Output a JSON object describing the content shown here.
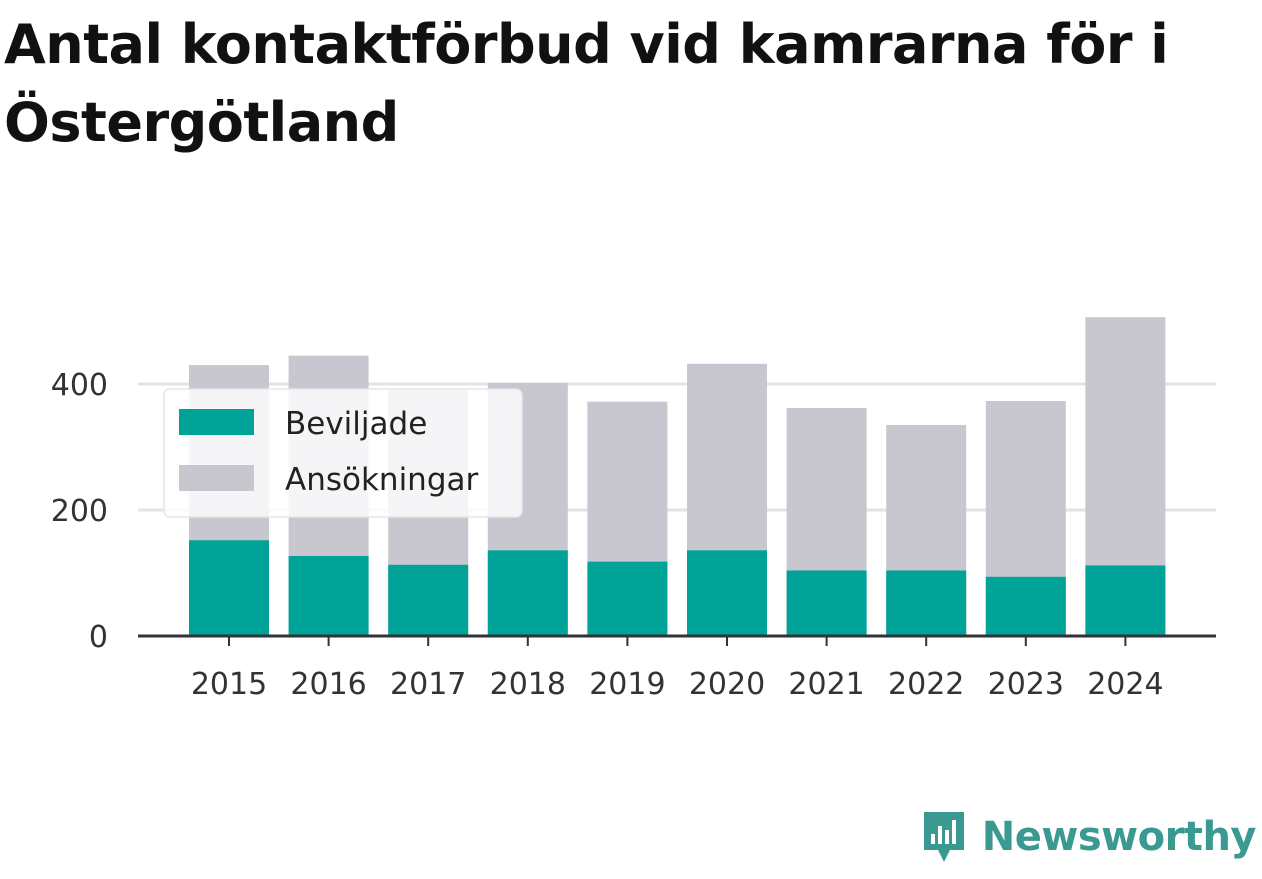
{
  "chart_data": {
    "type": "bar",
    "title": "Antal kontaktförbud vid kamrarna för i Östergötland",
    "categories": [
      "2015",
      "2016",
      "2017",
      "2018",
      "2019",
      "2020",
      "2021",
      "2022",
      "2023",
      "2024"
    ],
    "series": [
      {
        "name": "Beviljade",
        "color": "#00a398",
        "values": [
          152,
          127,
          113,
          136,
          118,
          136,
          104,
          104,
          94,
          112
        ]
      },
      {
        "name": "Ansökningar",
        "color": "#c8c7cf",
        "values": [
          430,
          445,
          390,
          402,
          372,
          432,
          362,
          335,
          373,
          506
        ]
      }
    ],
    "overlap": true,
    "xlabel": "",
    "ylabel": "",
    "ylim": [
      0,
      510
    ],
    "yticks": [
      0,
      200,
      400
    ],
    "grid": true,
    "legend_position": "top-left"
  },
  "brand": {
    "name": "Newsworthy",
    "icon": "newsworthy-logo-icon",
    "color": "#3a9a92"
  }
}
